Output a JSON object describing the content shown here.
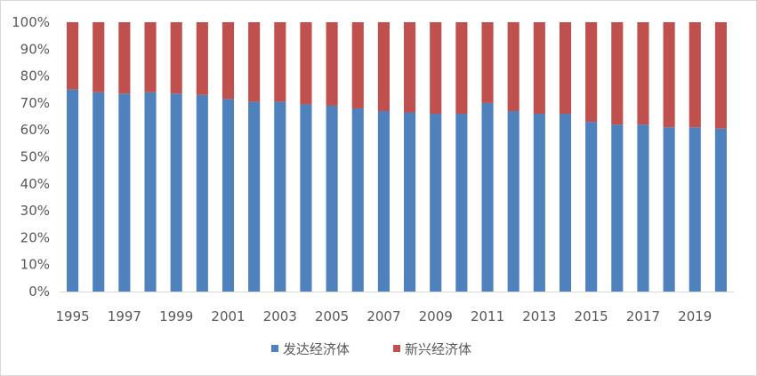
{
  "chart_data": {
    "type": "bar",
    "stacked": true,
    "normalized": true,
    "categories": [
      "1995",
      "1996",
      "1997",
      "1998",
      "1999",
      "2000",
      "2001",
      "2002",
      "2003",
      "2004",
      "2005",
      "2006",
      "2007",
      "2008",
      "2009",
      "2010",
      "2011",
      "2012",
      "2013",
      "2014",
      "2015",
      "2016",
      "2017",
      "2018",
      "2019",
      "2020"
    ],
    "x_tick_labels": [
      "1995",
      "1997",
      "1999",
      "2001",
      "2003",
      "2005",
      "2007",
      "2009",
      "2011",
      "2013",
      "2015",
      "2017",
      "2019"
    ],
    "y_tick_labels": [
      "0%",
      "10%",
      "20%",
      "30%",
      "40%",
      "50%",
      "60%",
      "70%",
      "80%",
      "90%",
      "100%"
    ],
    "ylim": [
      0,
      100
    ],
    "grid": false,
    "legend_position": "bottom",
    "series": [
      {
        "name": "发达经济体",
        "color": "#4f81bd",
        "values": [
          75,
          74,
          73.5,
          74,
          73.5,
          73,
          71.5,
          70.5,
          70.5,
          69.5,
          69,
          68,
          67,
          66.5,
          66,
          66,
          70,
          67,
          66,
          66,
          63,
          62,
          62,
          61,
          61,
          60.5
        ]
      },
      {
        "name": "新兴经济体",
        "color": "#c0504d",
        "values": [
          25,
          26,
          26.5,
          26,
          26.5,
          27,
          28.5,
          29.5,
          29.5,
          30.5,
          31,
          32,
          33,
          33.5,
          34,
          34,
          30,
          33,
          34,
          34,
          37,
          38,
          38,
          39,
          39,
          39.5
        ]
      }
    ]
  }
}
